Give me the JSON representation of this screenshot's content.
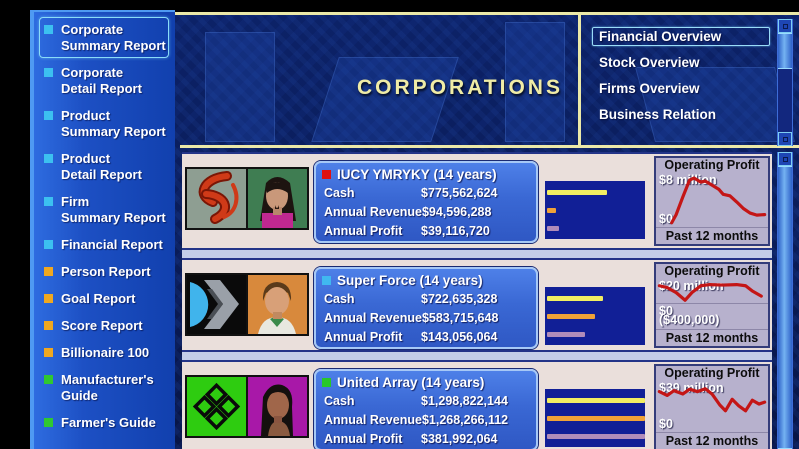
{
  "sidebar": {
    "items": [
      {
        "label": "Corporate\nSummary Report",
        "color": "#3cc0f0",
        "selected": true
      },
      {
        "label": "Corporate\nDetail Report",
        "color": "#3cc0f0"
      },
      {
        "label": "Product\nSummary Report",
        "color": "#3cc0f0"
      },
      {
        "label": "Product\nDetail Report",
        "color": "#3cc0f0"
      },
      {
        "label": "Firm\nSummary Report",
        "color": "#3cc0f0"
      },
      {
        "label": "Financial Report",
        "color": "#3cc0f0"
      },
      {
        "label": "Person Report",
        "color": "#f0a820"
      },
      {
        "label": "Goal Report",
        "color": "#f0a820"
      },
      {
        "label": "Score Report",
        "color": "#f0a820"
      },
      {
        "label": "Billionaire 100",
        "color": "#f0a820"
      },
      {
        "label": "Manufacturer's\nGuide",
        "color": "#30c830"
      },
      {
        "label": "Farmer's Guide",
        "color": "#30c830"
      }
    ]
  },
  "banner": {
    "title": "CORPORATIONS"
  },
  "menu": {
    "items": [
      {
        "label": "Financial Overview",
        "selected": true
      },
      {
        "label": "Stock Overview"
      },
      {
        "label": "Firms Overview"
      },
      {
        "label": "Business Relation"
      }
    ]
  },
  "corporations": [
    {
      "name": "IUCY YMRYKY",
      "age": "(14 years)",
      "bullet": "#e01010",
      "cash_label": "Cash",
      "cash": "$775,562,624",
      "revenue_label": "Annual Revenue",
      "revenue": "$94,596,288",
      "profit_label": "Annual Profit",
      "profit": "$39,116,720",
      "bars": [
        "60%",
        "9%",
        "12%"
      ],
      "op": {
        "title": "Operating Profit",
        "max": "$8 million",
        "zero": "$0",
        "footer": "Past 12 months",
        "points": [
          [
            14,
            96
          ],
          [
            18,
            80
          ],
          [
            24,
            45
          ],
          [
            30,
            12
          ],
          [
            34,
            8
          ],
          [
            40,
            16
          ],
          [
            44,
            14
          ],
          [
            50,
            22
          ],
          [
            56,
            30
          ],
          [
            60,
            40
          ],
          [
            66,
            43
          ],
          [
            72,
            55
          ],
          [
            78,
            68
          ],
          [
            84,
            77
          ],
          [
            90,
            81
          ],
          [
            97,
            80
          ]
        ]
      }
    },
    {
      "name": "Super Force",
      "age": "(14 years)",
      "bullet": "#40b8f0",
      "cash_label": "Cash",
      "cash": "$722,635,328",
      "revenue_label": "Annual Revenue",
      "revenue": "$583,715,648",
      "profit_label": "Annual Profit",
      "profit": "$143,056,064",
      "bars": [
        "56%",
        "48%",
        "38%"
      ],
      "op": {
        "title": "Operating Profit",
        "max": "$20 million",
        "zero": "$0",
        "neg": "($400,000)",
        "footer": "Past 12 months",
        "points": [
          [
            3,
            25
          ],
          [
            10,
            33
          ],
          [
            18,
            55
          ],
          [
            26,
            88
          ],
          [
            32,
            55
          ],
          [
            40,
            25
          ],
          [
            48,
            20
          ],
          [
            60,
            22
          ],
          [
            72,
            20
          ],
          [
            80,
            25
          ],
          [
            86,
            48
          ],
          [
            94,
            70
          ]
        ]
      }
    },
    {
      "name": "United Array",
      "age": "(14 years)",
      "bullet": "#28c828",
      "cash_label": "Cash",
      "cash": "$1,298,822,144",
      "revenue_label": "Annual Revenue",
      "revenue": "$1,268,266,112",
      "profit_label": "Annual Profit",
      "profit": "$381,992,064",
      "bars": [
        "98%",
        "98%",
        "98%"
      ],
      "op": {
        "title": "Operating Profit",
        "max": "$39 million",
        "zero": "$0",
        "footer": "Past 12 months",
        "points": [
          [
            3,
            20
          ],
          [
            10,
            28
          ],
          [
            16,
            18
          ],
          [
            24,
            25
          ],
          [
            30,
            15
          ],
          [
            37,
            20
          ],
          [
            44,
            14
          ],
          [
            50,
            25
          ],
          [
            57,
            48
          ],
          [
            62,
            60
          ],
          [
            68,
            36
          ],
          [
            74,
            50
          ],
          [
            80,
            60
          ],
          [
            86,
            38
          ],
          [
            92,
            46
          ],
          [
            97,
            42
          ]
        ]
      }
    }
  ],
  "colors": {
    "accent_yellow": "#ece9a8",
    "bar_yellow": "#f2ee62",
    "bar_orange": "#f0a238",
    "bar_purple": "#b08cba",
    "profit_line_red": "#c41616",
    "panel_blue": "#3c6cd8",
    "row_cream": "#eadfdb"
  }
}
